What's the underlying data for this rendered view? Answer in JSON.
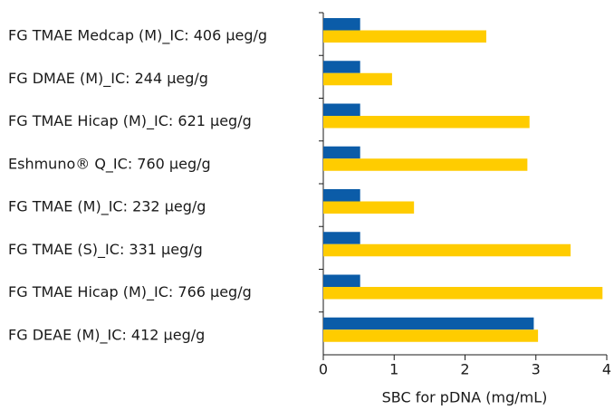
{
  "chart_data": {
    "type": "bar",
    "orientation": "horizontal",
    "categories": [
      "FG TMAE Medcap (M)_IC: 406 µeg/g",
      "FG DMAE (M)_IC: 244 µeg/g",
      "FG TMAE Hicap (M)_IC: 621 µeg/g",
      "Eshmuno® Q_IC: 760 µeg/g",
      "FG TMAE (M)_IC: 232 µeg/g",
      "FG TMAE (S)_IC: 331 µeg/g",
      "FG TMAE Hicap (M)_IC: 766 µeg/g",
      "FG DEAE (M)_IC: 412 µeg/g"
    ],
    "series": [
      {
        "color": "#0b5ca8",
        "values": [
          0.52,
          0.52,
          0.52,
          0.52,
          0.52,
          0.52,
          0.52,
          2.97
        ]
      },
      {
        "color": "#ffcc00",
        "values": [
          2.3,
          0.97,
          2.91,
          2.88,
          1.28,
          3.49,
          3.94,
          3.03
        ]
      }
    ],
    "xlabel": "SBC for pDNA (mg/mL)",
    "xlim": [
      0,
      4
    ],
    "xticks": [
      0,
      1,
      2,
      3,
      4
    ]
  }
}
